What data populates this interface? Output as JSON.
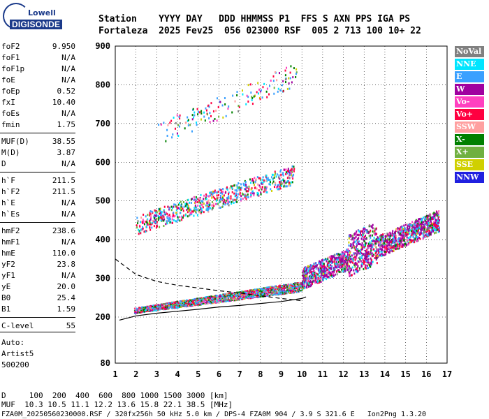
{
  "logo": {
    "top": "Lowell",
    "main": "DIGISONDE"
  },
  "header": {
    "line1": "Station    YYYY DAY   DDD HHMMSS P1  FFS S AXN PPS IGA PS",
    "line2": "Fortaleza  2025 Fev25  056 023000 RSF  005 2 713 100 10+ 22"
  },
  "params": [
    {
      "label": "foF2",
      "value": "9.950"
    },
    {
      "label": "foF1",
      "value": "N/A"
    },
    {
      "label": "foF1p",
      "value": "N/A"
    },
    {
      "label": "foE",
      "value": "N/A"
    },
    {
      "label": "foEp",
      "value": "0.52"
    },
    {
      "label": "fxI",
      "value": "10.40"
    },
    {
      "label": "foEs",
      "value": "N/A"
    },
    {
      "label": "fmin",
      "value": "1.75"
    },
    {
      "label": "MUF(D)",
      "value": "38.55"
    },
    {
      "label": "M(D)",
      "value": "3.87"
    },
    {
      "label": "D",
      "value": "N/A"
    },
    {
      "label": "h`F",
      "value": "211.5"
    },
    {
      "label": "h`F2",
      "value": "211.5"
    },
    {
      "label": "h`E",
      "value": "N/A"
    },
    {
      "label": "h`Es",
      "value": "N/A"
    },
    {
      "label": "hmF2",
      "value": "238.6"
    },
    {
      "label": "hmF1",
      "value": "N/A"
    },
    {
      "label": "hmE",
      "value": "110.0"
    },
    {
      "label": "yF2",
      "value": "23.8"
    },
    {
      "label": "yF1",
      "value": "N/A"
    },
    {
      "label": "yE",
      "value": "20.0"
    },
    {
      "label": "B0",
      "value": "25.4"
    },
    {
      "label": "B1",
      "value": "1.59"
    },
    {
      "label": "C-level",
      "value": "55"
    }
  ],
  "auto": {
    "line1": "Auto:",
    "line2": "Artist5",
    "line3": "500200"
  },
  "bottom": {
    "d_line": "D     100  200  400  600  800 1000 1500 3000 [km]",
    "muf_line": "MUF  10.3 10.5 11.1 12.2 13.6 15.8 22.1 38.5 [MHz]",
    "file_line": "FZA0M_20250560230000.RSF / 320fx256h 50 kHz 5.0 km / DPS-4 FZA0M 904 / 3.9 S 321.6 E   Ion2Png 1.3.20"
  },
  "legend": [
    {
      "label": "NoVal",
      "color": "#808080"
    },
    {
      "label": "NNE",
      "color": "#00e5ff"
    },
    {
      "label": "E",
      "color": "#3aa0ff"
    },
    {
      "label": "W",
      "color": "#a000a0"
    },
    {
      "label": "Vo-",
      "color": "#ff40c0"
    },
    {
      "label": "Vo+",
      "color": "#ff0040"
    },
    {
      "label": "SSW",
      "color": "#ffa0a0"
    },
    {
      "label": "X-",
      "color": "#008000"
    },
    {
      "label": "X+",
      "color": "#70b040"
    },
    {
      "label": "SSE",
      "color": "#d0d000"
    },
    {
      "label": "NNW",
      "color": "#2020e0"
    }
  ],
  "chart_data": {
    "type": "scatter",
    "xlabel": "",
    "ylabel": "",
    "xlim": [
      1,
      17
    ],
    "ylim": [
      80,
      900
    ],
    "x_ticks": [
      1,
      2,
      3,
      4,
      5,
      6,
      7,
      8,
      9,
      10,
      11,
      12,
      13,
      14,
      15,
      16,
      17
    ],
    "y_ticks": [
      80,
      200,
      300,
      400,
      500,
      600,
      700,
      800,
      900
    ],
    "trace_bands": [
      {
        "name": "F-trace (1st hop)",
        "x_start": 1.9,
        "x_end": 10.0,
        "h_start": 215,
        "h_end": 275
      },
      {
        "name": "spread-F",
        "x_start": 10.0,
        "x_end": 16.6,
        "h_start": 290,
        "h_end": 440
      },
      {
        "name": "2nd hop",
        "x_start": 2.0,
        "x_end": 9.6,
        "h_start": 430,
        "h_end": 560
      },
      {
        "name": "3rd hop",
        "x_start": 3.0,
        "x_end": 9.8,
        "h_start": 660,
        "h_end": 820
      }
    ],
    "profile_curves": [
      {
        "name": "dashed",
        "style": "dashed",
        "points": [
          [
            1,
            350
          ],
          [
            1.5,
            330
          ],
          [
            2,
            310
          ],
          [
            3,
            292
          ],
          [
            4,
            282
          ],
          [
            5,
            275
          ],
          [
            6,
            268
          ],
          [
            7,
            262
          ],
          [
            8,
            255
          ],
          [
            9,
            248
          ],
          [
            10,
            242
          ]
        ]
      },
      {
        "name": "solid",
        "style": "solid",
        "points": [
          [
            1.2,
            192
          ],
          [
            2,
            203
          ],
          [
            3,
            210
          ],
          [
            4,
            215
          ],
          [
            5,
            220
          ],
          [
            6,
            226
          ],
          [
            7,
            230
          ],
          [
            8,
            235
          ],
          [
            9,
            240
          ],
          [
            10,
            248
          ],
          [
            10.2,
            252
          ]
        ]
      }
    ]
  }
}
